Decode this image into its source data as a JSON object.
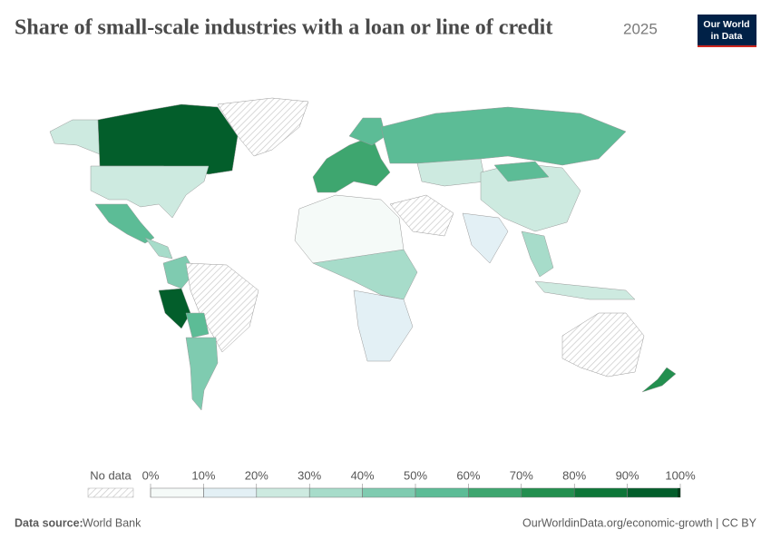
{
  "header": {
    "title": "Share of small-scale industries with a loan or line of credit",
    "year": "2025"
  },
  "logo": {
    "line1": "Our World",
    "line2": "in Data"
  },
  "legend": {
    "no_data": "No data",
    "ticks": [
      {
        "value": 0,
        "label": "0%"
      },
      {
        "value": 10,
        "label": "10%"
      },
      {
        "value": 20,
        "label": "20%"
      },
      {
        "value": 30,
        "label": "30%"
      },
      {
        "value": 40,
        "label": "40%"
      },
      {
        "value": 50,
        "label": "50%"
      },
      {
        "value": 60,
        "label": "60%"
      },
      {
        "value": 70,
        "label": "70%"
      },
      {
        "value": 80,
        "label": "80%"
      },
      {
        "value": 90,
        "label": "90%"
      },
      {
        "value": 100,
        "label": "100%"
      }
    ],
    "colors": [
      "#f5faf8",
      "#e3f0f5",
      "#cdeae0",
      "#a7dcca",
      "#7fcbb0",
      "#5cbc96",
      "#3ea66f",
      "#238f4f",
      "#0d7638",
      "#035e2b",
      "#013d1b"
    ]
  },
  "footer": {
    "source_label": "Data source:",
    "source": "World Bank",
    "url": "OurWorldinData.org/economic-growth | CC BY"
  }
}
